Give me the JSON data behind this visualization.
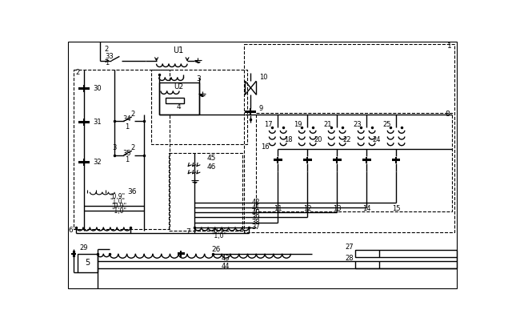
{
  "bg_color": "#ffffff",
  "lc": "#000000",
  "figsize": [
    6.4,
    4.07
  ],
  "dpi": 100
}
